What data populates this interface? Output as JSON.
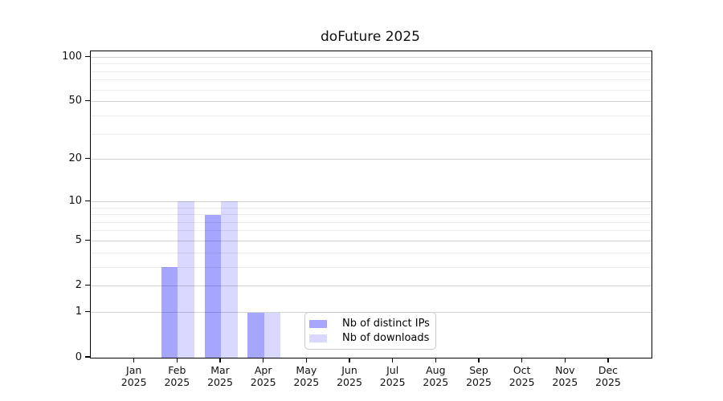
{
  "chart_data": {
    "type": "bar",
    "title": "doFuture 2025",
    "categories": [
      "Jan",
      "Feb",
      "Mar",
      "Apr",
      "May",
      "Jun",
      "Jul",
      "Aug",
      "Sep",
      "Oct",
      "Nov",
      "Dec"
    ],
    "x_sublabel": "2025",
    "series": [
      {
        "name": "Nb of distinct IPs",
        "color": "rgba(0,0,255,0.35)",
        "values": [
          0,
          3,
          8,
          1,
          0,
          0,
          0,
          0,
          0,
          0,
          0,
          0
        ]
      },
      {
        "name": "Nb of downloads",
        "color": "rgba(0,0,255,0.15)",
        "values": [
          0,
          10,
          10,
          1,
          0,
          0,
          0,
          0,
          0,
          0,
          0,
          0
        ]
      }
    ],
    "xlabel": "",
    "ylabel": "",
    "y_scale": "log1p",
    "y_ticks": [
      0,
      1,
      2,
      5,
      10,
      20,
      50,
      100
    ],
    "y_minor_gridlines": [
      3,
      4,
      6,
      7,
      8,
      9,
      30,
      40,
      60,
      70,
      80,
      90
    ],
    "ylim": [
      0,
      110
    ],
    "grid": "on",
    "legend_position": "bottom-center",
    "colors": {
      "bar_distinct_ips": "#a8a8f6",
      "bar_downloads": "#dcdcfa",
      "grid_major": "#d2d2d2",
      "grid_minor": "#ececec",
      "axis": "#000000",
      "background": "#ffffff"
    }
  }
}
